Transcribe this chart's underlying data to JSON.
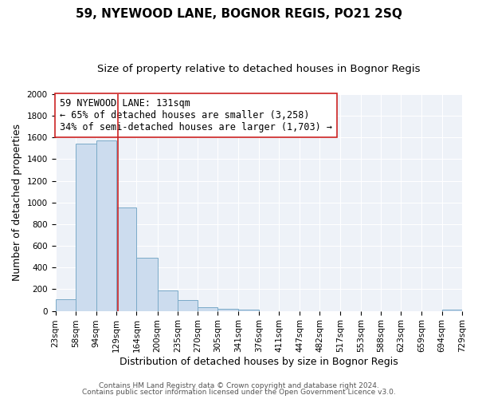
{
  "title": "59, NYEWOOD LANE, BOGNOR REGIS, PO21 2SQ",
  "subtitle": "Size of property relative to detached houses in Bognor Regis",
  "xlabel": "Distribution of detached houses by size in Bognor Regis",
  "ylabel": "Number of detached properties",
  "bins": [
    23,
    58,
    94,
    129,
    164,
    200,
    235,
    270,
    305,
    341,
    376,
    411,
    447,
    482,
    517,
    553,
    588,
    623,
    659,
    694,
    729
  ],
  "counts": [
    110,
    1540,
    1570,
    950,
    490,
    190,
    100,
    35,
    20,
    15,
    0,
    0,
    0,
    0,
    0,
    0,
    0,
    0,
    0,
    15
  ],
  "bar_color": "#ccdcee",
  "bar_edge_color": "#7aaac8",
  "vline_x": 131,
  "vline_color": "#cc2222",
  "annotation_line1": "59 NYEWOOD LANE: 131sqm",
  "annotation_line2": "← 65% of detached houses are smaller (3,258)",
  "annotation_line3": "34% of semi-detached houses are larger (1,703) →",
  "annotation_box_edge": "#cc2222",
  "annotation_box_face": "#ffffff",
  "ylim": [
    0,
    2000
  ],
  "yticks": [
    0,
    200,
    400,
    600,
    800,
    1000,
    1200,
    1400,
    1600,
    1800,
    2000
  ],
  "tick_labels": [
    "23sqm",
    "58sqm",
    "94sqm",
    "129sqm",
    "164sqm",
    "200sqm",
    "235sqm",
    "270sqm",
    "305sqm",
    "341sqm",
    "376sqm",
    "411sqm",
    "447sqm",
    "482sqm",
    "517sqm",
    "553sqm",
    "588sqm",
    "623sqm",
    "659sqm",
    "694sqm",
    "729sqm"
  ],
  "underline_tick_index": 3,
  "footer1": "Contains HM Land Registry data © Crown copyright and database right 2024.",
  "footer2": "Contains public sector information licensed under the Open Government Licence v3.0.",
  "bg_color": "#ffffff",
  "plot_bg_color": "#eef2f8",
  "title_fontsize": 11,
  "subtitle_fontsize": 9.5,
  "axis_label_fontsize": 9,
  "tick_fontsize": 7.5,
  "annotation_fontsize": 8.5,
  "footer_fontsize": 6.5,
  "footer_color": "#555555"
}
